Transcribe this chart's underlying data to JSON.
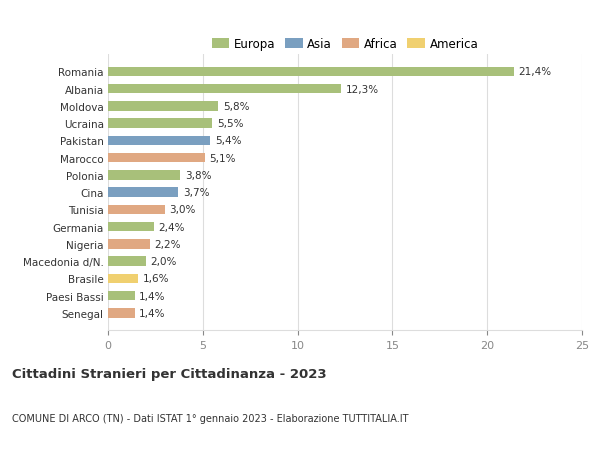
{
  "countries": [
    "Romania",
    "Albania",
    "Moldova",
    "Ucraina",
    "Pakistan",
    "Marocco",
    "Polonia",
    "Cina",
    "Tunisia",
    "Germania",
    "Nigeria",
    "Macedonia d/N.",
    "Brasile",
    "Paesi Bassi",
    "Senegal"
  ],
  "values": [
    21.4,
    12.3,
    5.8,
    5.5,
    5.4,
    5.1,
    3.8,
    3.7,
    3.0,
    2.4,
    2.2,
    2.0,
    1.6,
    1.4,
    1.4
  ],
  "labels": [
    "21,4%",
    "12,3%",
    "5,8%",
    "5,5%",
    "5,4%",
    "5,1%",
    "3,8%",
    "3,7%",
    "3,0%",
    "2,4%",
    "2,2%",
    "2,0%",
    "1,6%",
    "1,4%",
    "1,4%"
  ],
  "continents": [
    "Europa",
    "Europa",
    "Europa",
    "Europa",
    "Asia",
    "Africa",
    "Europa",
    "Asia",
    "Africa",
    "Europa",
    "Africa",
    "Europa",
    "America",
    "Europa",
    "Africa"
  ],
  "continent_colors": {
    "Europa": "#a8c07a",
    "Asia": "#7a9fc0",
    "Africa": "#e0a882",
    "America": "#f0d070"
  },
  "legend_order": [
    "Europa",
    "Asia",
    "Africa",
    "America"
  ],
  "legend_colors": [
    "#a8c07a",
    "#7a9fc0",
    "#e0a882",
    "#f0d070"
  ],
  "title": "Cittadini Stranieri per Cittadinanza - 2023",
  "subtitle": "COMUNE DI ARCO (TN) - Dati ISTAT 1° gennaio 2023 - Elaborazione TUTTITALIA.IT",
  "xlim": [
    0,
    25
  ],
  "xticks": [
    0,
    5,
    10,
    15,
    20,
    25
  ],
  "background_color": "#ffffff",
  "grid_color": "#dddddd",
  "bar_height": 0.55,
  "text_color": "#333333",
  "axis_label_color": "#888888"
}
